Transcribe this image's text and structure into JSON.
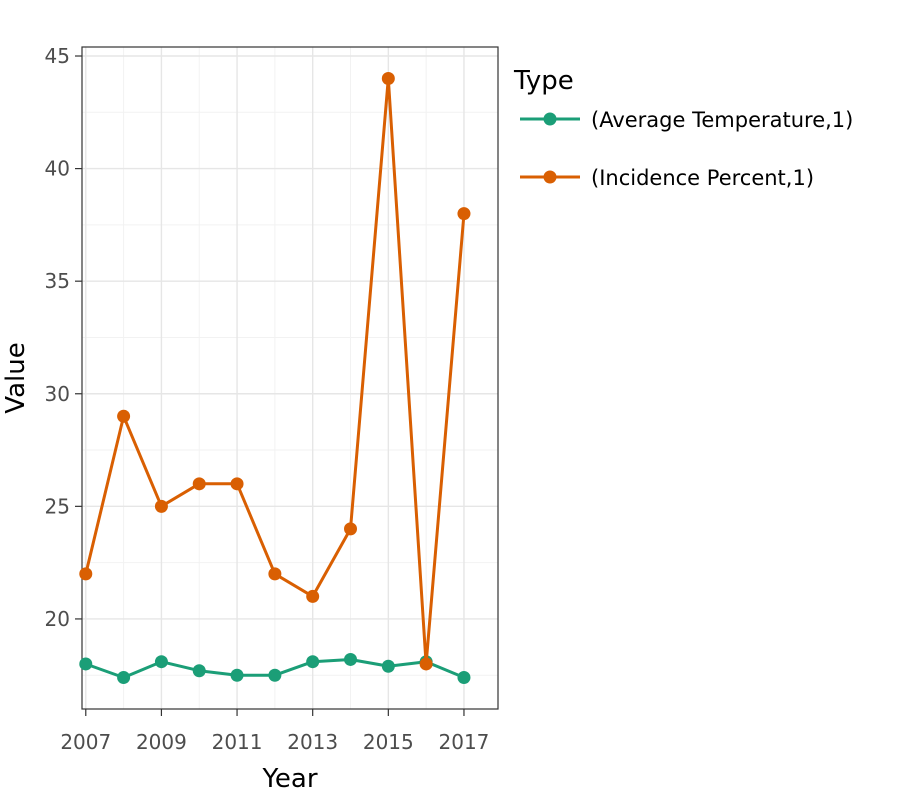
{
  "chart_data": {
    "type": "line",
    "title": "",
    "xlabel": "Year",
    "ylabel": "Value",
    "x": [
      2007,
      2008,
      2009,
      2010,
      2011,
      2012,
      2013,
      2014,
      2015,
      2016,
      2017
    ],
    "x_ticks": [
      "2007",
      "2009",
      "2011",
      "2013",
      "2015",
      "2017"
    ],
    "y_ticks": [
      "20",
      "25",
      "30",
      "35",
      "40",
      "45"
    ],
    "xlim": [
      2006.9,
      2017.9
    ],
    "ylim": [
      16.0,
      45.4
    ],
    "grid": true,
    "legend": {
      "title": "Type",
      "position": "right"
    },
    "series": [
      {
        "name": "(Average Temperature,1)",
        "color": "#1b9e77",
        "values": [
          18.0,
          17.4,
          18.1,
          17.7,
          17.5,
          17.5,
          18.1,
          18.2,
          17.9,
          18.1,
          17.4
        ]
      },
      {
        "name": "(Incidence Percent,1)",
        "color": "#d95f02",
        "values": [
          22,
          29,
          25,
          26,
          26,
          22,
          21,
          24,
          44,
          18,
          38
        ]
      }
    ]
  }
}
